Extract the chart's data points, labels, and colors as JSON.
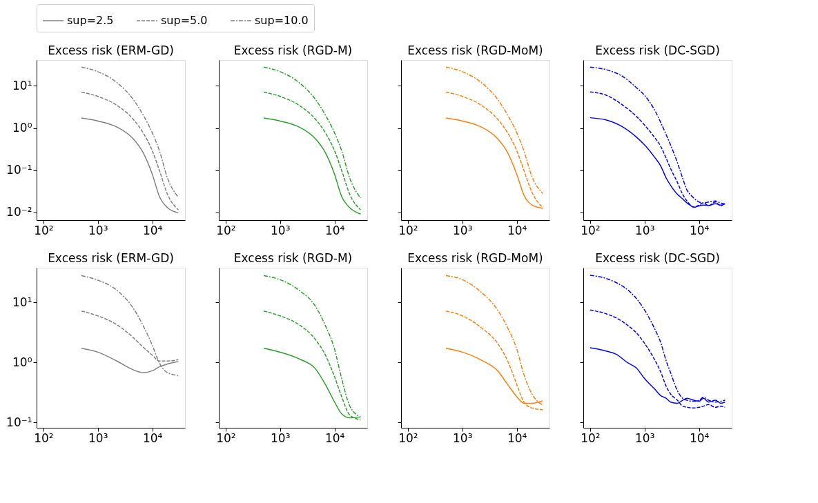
{
  "chart_data": [
    {
      "type": "line",
      "title": "Excess risk (ERM-GD)",
      "log": "xy",
      "legend": "top",
      "xlim": [
        75,
        39800
      ],
      "ylim": [
        0.0066,
        41
      ],
      "xticks": [
        {
          "value": 100,
          "label": "10²"
        },
        {
          "value": 1000,
          "label": "10³"
        },
        {
          "value": 10000,
          "label": "10⁴"
        }
      ],
      "yticks": [
        {
          "value": 0.01,
          "label": "10⁻²"
        },
        {
          "value": 0.1,
          "label": "10⁻¹"
        },
        {
          "value": 1,
          "label": "10⁰"
        },
        {
          "value": 10,
          "label": "10¹"
        }
      ],
      "x": [
        500,
        1000,
        2230,
        4440,
        6800,
        10000,
        13500,
        19000,
        30000
      ],
      "series": [
        {
          "name": "sup=2.5",
          "color": "#808080",
          "line_style": "solid",
          "values": [
            1.73,
            1.47,
            1.06,
            0.56,
            0.26,
            0.08,
            0.024,
            0.013,
            0.0098
          ]
        },
        {
          "name": "sup=5.0",
          "color": "#808080",
          "line_style": "dashed",
          "values": [
            7.1,
            5.64,
            3.47,
            1.63,
            0.77,
            0.29,
            0.099,
            0.027,
            0.0115
          ]
        },
        {
          "name": "sup=10.0",
          "color": "#808080",
          "line_style": "dashdot",
          "values": [
            27.8,
            21.7,
            12,
            4.8,
            2.03,
            0.77,
            0.29,
            0.065,
            0.023
          ]
        }
      ]
    },
    {
      "type": "line",
      "title": "Excess risk (RGD-M)",
      "log": "xy",
      "tick_labels": "x",
      "xlim": [
        75,
        39800
      ],
      "ylim": [
        0.0066,
        41
      ],
      "xticks": [
        {
          "value": 100,
          "label": "10²"
        },
        {
          "value": 1000,
          "label": "10³"
        },
        {
          "value": 10000,
          "label": "10⁴"
        }
      ],
      "yticks": [
        {
          "value": 0.01,
          "label": null
        },
        {
          "value": 0.1,
          "label": null
        },
        {
          "value": 1,
          "label": null
        },
        {
          "value": 10,
          "label": null
        }
      ],
      "x": [
        500,
        1000,
        2230,
        4440,
        6800,
        10000,
        13500,
        19000,
        30000
      ],
      "series": [
        {
          "color": "#2ca02c",
          "line_style": "solid",
          "values": [
            1.73,
            1.47,
            1.06,
            0.56,
            0.26,
            0.08,
            0.024,
            0.013,
            0.0092
          ]
        },
        {
          "color": "#2ca02c",
          "line_style": "dashed",
          "values": [
            7.1,
            5.64,
            3.47,
            1.63,
            0.77,
            0.29,
            0.099,
            0.027,
            0.0115
          ]
        },
        {
          "color": "#2ca02c",
          "line_style": "dashdot",
          "values": [
            27.8,
            21.7,
            12,
            4.8,
            2.03,
            0.77,
            0.29,
            0.065,
            0.022
          ]
        }
      ]
    },
    {
      "type": "line",
      "title": "Excess risk (RGD-MoM)",
      "log": "xy",
      "tick_labels": "x",
      "xlim": [
        75,
        39800
      ],
      "ylim": [
        0.0066,
        41
      ],
      "xticks": [
        {
          "value": 100,
          "label": "10²"
        },
        {
          "value": 1000,
          "label": "10³"
        },
        {
          "value": 10000,
          "label": "10⁴"
        }
      ],
      "yticks": [
        {
          "value": 0.01,
          "label": null
        },
        {
          "value": 0.1,
          "label": null
        },
        {
          "value": 1,
          "label": null
        },
        {
          "value": 10,
          "label": null
        }
      ],
      "x": [
        500,
        1000,
        2230,
        4440,
        6800,
        10000,
        13500,
        19000,
        30000
      ],
      "series": [
        {
          "color": "#ff7f0e",
          "line_style": "solid",
          "values": [
            1.73,
            1.47,
            1.06,
            0.56,
            0.26,
            0.08,
            0.026,
            0.015,
            0.0125
          ]
        },
        {
          "color": "#ff7f0e",
          "line_style": "dashed",
          "values": [
            7.1,
            5.64,
            3.47,
            1.63,
            0.77,
            0.29,
            0.1,
            0.03,
            0.013
          ]
        },
        {
          "color": "#ff7f0e",
          "line_style": "dashdot",
          "values": [
            27.8,
            21.7,
            12,
            4.8,
            2.03,
            0.77,
            0.29,
            0.07,
            0.028
          ]
        }
      ]
    },
    {
      "type": "line",
      "title": "Excess risk (DC-SGD)",
      "log": "xy",
      "tick_labels": "x",
      "xlim": [
        75,
        39800
      ],
      "ylim": [
        0.0066,
        41
      ],
      "xticks": [
        {
          "value": 100,
          "label": "10²"
        },
        {
          "value": 1000,
          "label": "10³"
        },
        {
          "value": 10000,
          "label": "10⁴"
        }
      ],
      "yticks": [
        {
          "value": 0.01,
          "label": null
        },
        {
          "value": 0.1,
          "label": null
        },
        {
          "value": 1,
          "label": null
        },
        {
          "value": 10,
          "label": null
        }
      ],
      "x": [
        100,
        200,
        400,
        700,
        1000,
        1500,
        2000,
        2500,
        3000,
        4000,
        5000,
        6000,
        7000,
        8000,
        10000,
        12000,
        15000,
        20000,
        25000,
        30000
      ],
      "series": [
        {
          "color": "#0000ff",
          "line_style": "solid",
          "values": [
            1.76,
            1.55,
            1.06,
            0.62,
            0.4,
            0.21,
            0.123,
            0.065,
            0.044,
            0.027,
            0.021,
            0.0168,
            0.0146,
            0.0132,
            0.0143,
            0.015,
            0.0146,
            0.0162,
            0.015,
            0.0159
          ]
        },
        {
          "color": "#0000ff",
          "line_style": "dashed",
          "values": [
            7.2,
            5.96,
            3.47,
            1.92,
            1.18,
            0.62,
            0.36,
            0.19,
            0.11,
            0.052,
            0.027,
            0.0187,
            0.015,
            0.0135,
            0.015,
            0.0168,
            0.0146,
            0.0177,
            0.0143,
            0.0168
          ]
        },
        {
          "color": "#0000ff",
          "line_style": "dashdot",
          "values": [
            27.8,
            24.1,
            16.6,
            9.2,
            5.96,
            2.8,
            1.32,
            0.69,
            0.4,
            0.153,
            0.065,
            0.034,
            0.026,
            0.022,
            0.0177,
            0.0168,
            0.0177,
            0.0187,
            0.0168,
            0.0159
          ]
        }
      ]
    },
    {
      "type": "line",
      "title": "Excess risk (ERM-GD)",
      "log": "xy",
      "xlim": [
        75,
        39800
      ],
      "ylim": [
        0.082,
        38
      ],
      "xticks": [
        {
          "value": 100,
          "label": "10²"
        },
        {
          "value": 1000,
          "label": "10³"
        },
        {
          "value": 10000,
          "label": "10⁴"
        }
      ],
      "yticks": [
        {
          "value": 0.1,
          "label": "10⁻¹"
        },
        {
          "value": 1,
          "label": "10⁰"
        },
        {
          "value": 10,
          "label": "10¹"
        }
      ],
      "x": [
        500,
        1000,
        2230,
        4440,
        6800,
        10000,
        13500,
        19000,
        30000
      ],
      "series": [
        {
          "color": "#808080",
          "line_style": "solid",
          "values": [
            1.73,
            1.49,
            1.06,
            0.76,
            0.68,
            0.73,
            0.85,
            0.95,
            1.04
          ]
        },
        {
          "color": "#808080",
          "line_style": "dashed",
          "values": [
            7.2,
            6.0,
            4.27,
            2.62,
            1.8,
            1.33,
            1.06,
            1.06,
            1.12
          ]
        },
        {
          "color": "#808080",
          "line_style": "dashdot",
          "values": [
            28,
            23.6,
            16,
            8.1,
            4.1,
            1.94,
            0.98,
            0.68,
            0.61
          ]
        }
      ]
    },
    {
      "type": "line",
      "title": "Excess risk (RGD-M)",
      "log": "xy",
      "tick_labels": "x",
      "xlim": [
        75,
        39800
      ],
      "ylim": [
        0.082,
        38
      ],
      "xticks": [
        {
          "value": 100,
          "label": "10²"
        },
        {
          "value": 1000,
          "label": "10³"
        },
        {
          "value": 10000,
          "label": "10⁴"
        }
      ],
      "yticks": [
        {
          "value": 0.1,
          "label": null
        },
        {
          "value": 1,
          "label": null
        },
        {
          "value": 10,
          "label": null
        }
      ],
      "x": [
        500,
        1000,
        2230,
        4440,
        6800,
        10000,
        13500,
        19000,
        30000
      ],
      "series": [
        {
          "color": "#2ca02c",
          "line_style": "solid",
          "values": [
            1.73,
            1.49,
            1.15,
            0.79,
            0.43,
            0.22,
            0.14,
            0.12,
            0.124
          ]
        },
        {
          "color": "#2ca02c",
          "line_style": "dashed",
          "values": [
            7.2,
            6.0,
            4.27,
            2.43,
            1.33,
            0.58,
            0.27,
            0.134,
            0.111
          ]
        },
        {
          "color": "#2ca02c",
          "line_style": "dashdot",
          "values": [
            28,
            24,
            16,
            8.7,
            4.1,
            1.67,
            0.54,
            0.19,
            0.124
          ]
        }
      ]
    },
    {
      "type": "line",
      "title": "Excess risk (RGD-MoM)",
      "log": "xy",
      "tick_labels": "x",
      "xlim": [
        75,
        39800
      ],
      "ylim": [
        0.082,
        38
      ],
      "xticks": [
        {
          "value": 100,
          "label": "10²"
        },
        {
          "value": 1000,
          "label": "10³"
        },
        {
          "value": 10000,
          "label": "10⁴"
        }
      ],
      "yticks": [
        {
          "value": 0.1,
          "label": null
        },
        {
          "value": 1,
          "label": null
        },
        {
          "value": 10,
          "label": null
        }
      ],
      "x": [
        500,
        1000,
        2230,
        4440,
        6800,
        10000,
        13500,
        19000,
        30000
      ],
      "series": [
        {
          "color": "#ff7f0e",
          "line_style": "solid",
          "values": [
            1.73,
            1.49,
            1.1,
            0.73,
            0.43,
            0.27,
            0.21,
            0.21,
            0.23
          ]
        },
        {
          "color": "#ff7f0e",
          "line_style": "dashed",
          "values": [
            7.2,
            6.0,
            3.8,
            2.09,
            1.06,
            0.43,
            0.22,
            0.175,
            0.164
          ]
        },
        {
          "color": "#ff7f0e",
          "line_style": "dashdot",
          "values": [
            28,
            24,
            14.8,
            7.5,
            3.8,
            1.67,
            0.63,
            0.3,
            0.195
          ]
        }
      ]
    },
    {
      "type": "line",
      "title": "Excess risk (DC-SGD)",
      "log": "xy",
      "tick_labels": "x",
      "xlim": [
        75,
        39800
      ],
      "ylim": [
        0.082,
        38
      ],
      "xticks": [
        {
          "value": 100,
          "label": "10²"
        },
        {
          "value": 1000,
          "label": "10³"
        },
        {
          "value": 10000,
          "label": "10⁴"
        }
      ],
      "yticks": [
        {
          "value": 0.1,
          "label": null
        },
        {
          "value": 1,
          "label": null
        },
        {
          "value": 10,
          "label": null
        }
      ],
      "x": [
        100,
        200,
        300,
        500,
        700,
        1000,
        1500,
        2000,
        2500,
        3000,
        4000,
        5000,
        6000,
        8000,
        10000,
        12000,
        15000,
        20000,
        25000,
        30000
      ],
      "series": [
        {
          "color": "#0000ff",
          "line_style": "solid",
          "values": [
            1.76,
            1.55,
            1.38,
            0.98,
            0.82,
            0.54,
            0.37,
            0.28,
            0.254,
            0.22,
            0.21,
            0.236,
            0.254,
            0.236,
            0.227,
            0.254,
            0.22,
            0.236,
            0.21,
            0.22
          ]
        },
        {
          "color": "#0000ff",
          "line_style": "dashed",
          "values": [
            7.5,
            6.46,
            5.56,
            4.1,
            3.16,
            2.09,
            1.15,
            0.68,
            0.4,
            0.3,
            0.236,
            0.188,
            0.18,
            0.175,
            0.18,
            0.188,
            0.2,
            0.18,
            0.188,
            0.18
          ]
        },
        {
          "color": "#0000ff",
          "line_style": "dashdot",
          "values": [
            28.5,
            25,
            21.5,
            16,
            11.8,
            7.5,
            3.8,
            2.09,
            1.06,
            0.68,
            0.34,
            0.254,
            0.236,
            0.227,
            0.236,
            0.264,
            0.236,
            0.22,
            0.227,
            0.236
          ]
        }
      ]
    }
  ]
}
